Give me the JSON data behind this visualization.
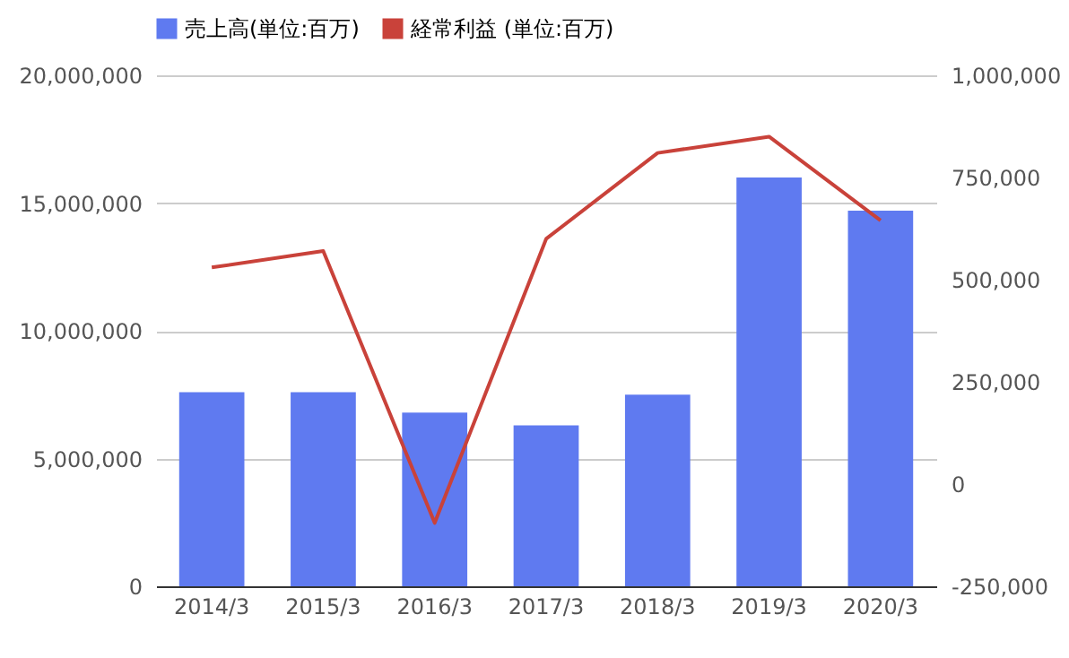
{
  "chart_data": {
    "type": "bar",
    "categories": [
      "2014/3",
      "2015/3",
      "2016/3",
      "2017/3",
      "2018/3",
      "2019/3",
      "2020/3"
    ],
    "series": [
      {
        "name": "売上高(単位:百万)",
        "color": "#5f7af0",
        "values": [
          7600000,
          7600000,
          6800000,
          6300000,
          7500000,
          16000000,
          14700000
        ]
      },
      {
        "name": "経常利益 (単位:百万)",
        "type": "line",
        "axis": "y2",
        "color": "#c9423a",
        "values": [
          530000,
          570000,
          -95000,
          600000,
          810000,
          850000,
          645000
        ]
      }
    ],
    "ylim": [
      0,
      20000000
    ],
    "yticks": [
      0,
      {
        "value": 5000000,
        "label": "5,000,000"
      },
      {
        "value": 10000000,
        "label": "10,000,000"
      },
      {
        "value": 15000000,
        "label": "15,000,000"
      },
      {
        "value": 20000000,
        "label": "20,000,000"
      }
    ],
    "y2lim": [
      -250000,
      1000000
    ],
    "y2ticks": [
      {
        "value": -250000,
        "label": "-250,000"
      },
      0,
      {
        "value": 250000,
        "label": "250,000"
      },
      {
        "value": 500000,
        "label": "500,000"
      },
      {
        "value": 750000,
        "label": "750,000"
      },
      {
        "value": 1000000,
        "label": "1,000,000"
      }
    ],
    "grid": "y",
    "legend": "top"
  }
}
